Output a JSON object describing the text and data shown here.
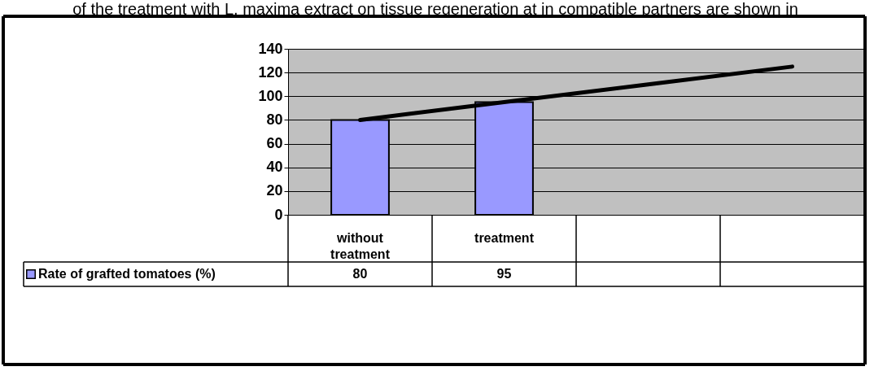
{
  "chart_data": {
    "type": "bar",
    "annotations": [
      "of the treatment with L. maxima extract on tissue regeneration at in compatible partners are shown in"
    ],
    "categories": [
      "without treatment",
      "treatment",
      null,
      null
    ],
    "series": [
      {
        "name": "Rate of grafted tomatoes (%)",
        "color": "#9999ff",
        "values": [
          80,
          95,
          null,
          null
        ],
        "value_labels": [
          "80",
          "95",
          null,
          null
        ]
      },
      {
        "type": "line",
        "color": "#000000",
        "values": [
          80,
          95,
          110,
          125
        ]
      }
    ],
    "ylim": [
      0,
      140
    ],
    "yticks": [
      0,
      20,
      40,
      60,
      80,
      100,
      120,
      140
    ],
    "grid": "y",
    "legend": "bottom left"
  }
}
